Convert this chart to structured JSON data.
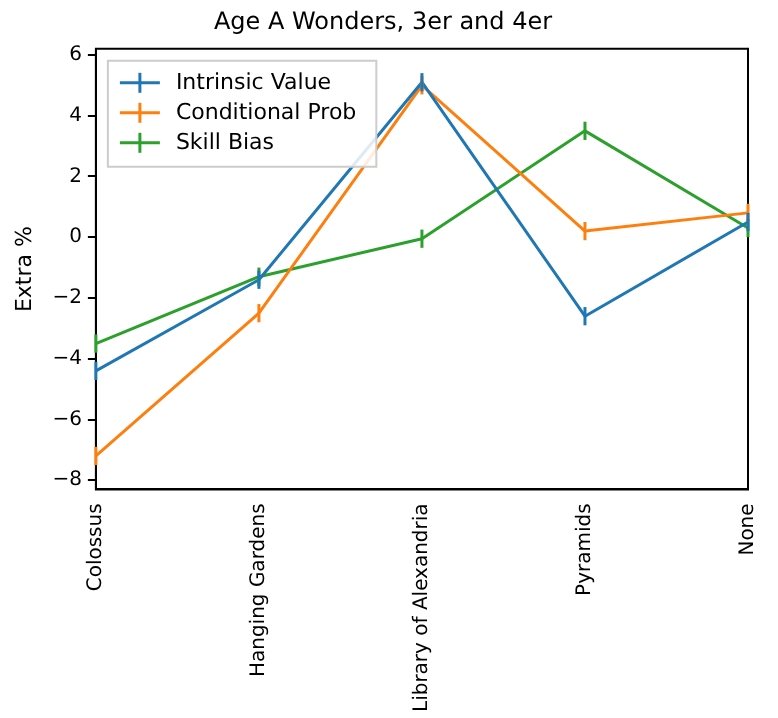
{
  "chart_data": {
    "type": "line",
    "title": "Age A Wonders, 3er and 4er",
    "ylabel": "Extra %",
    "categories": [
      "Colossus",
      "Hanging Gardens",
      "Library of Alexandria",
      "Pyramids",
      "None"
    ],
    "series": [
      {
        "name": "Intrinsic Value",
        "color": "#1f77b4",
        "values": [
          -4.4,
          -1.4,
          5.1,
          -2.6,
          0.5
        ],
        "errors": [
          0.3,
          0.3,
          0.3,
          0.3,
          0.3
        ]
      },
      {
        "name": "Conditional Prob",
        "color": "#ff7f0e",
        "values": [
          -7.2,
          -2.5,
          5.0,
          0.2,
          0.8
        ],
        "errors": [
          0.3,
          0.3,
          0.3,
          0.3,
          0.3
        ]
      },
      {
        "name": "Skill Bias",
        "color": "#2ca02c",
        "values": [
          -3.5,
          -1.3,
          -0.05,
          3.5,
          0.3
        ],
        "errors": [
          0.3,
          0.3,
          0.3,
          0.3,
          0.3
        ]
      }
    ],
    "ylim": [
      -8.3,
      6.2
    ],
    "yticks": [
      -8,
      -6,
      -4,
      -2,
      0,
      2,
      4,
      6
    ],
    "grid": false,
    "legend": "top left",
    "marker": "none",
    "line_style": "solid"
  }
}
